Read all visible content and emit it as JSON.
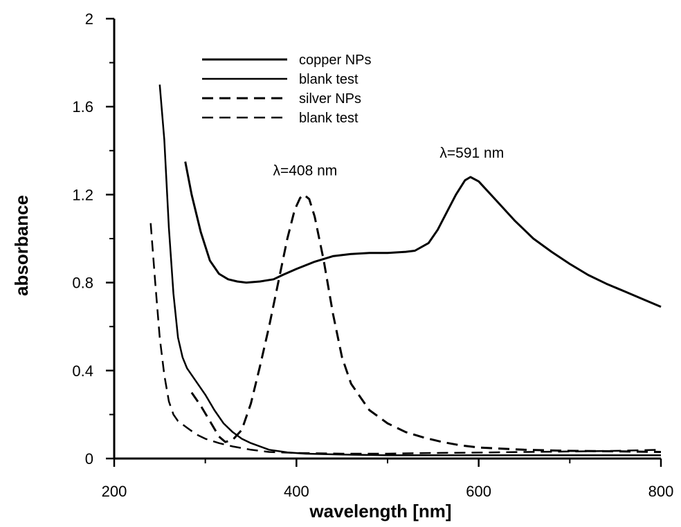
{
  "chart_data": {
    "type": "line",
    "title": "",
    "xlabel": "wavelength [nm]",
    "ylabel": "absorbance",
    "xlim": [
      200,
      800
    ],
    "ylim": [
      0,
      2
    ],
    "xticks": [
      200,
      400,
      600,
      800
    ],
    "yticks": [
      0,
      0.4,
      0.8,
      1.2,
      1.6,
      2
    ],
    "ytick_labels": [
      "0",
      "0.4",
      "0.8",
      "1.2",
      "1.6",
      "2"
    ],
    "grid": false,
    "legend_position": "top-left",
    "legend": [
      {
        "label": "copper NPs",
        "style": "solid-thick"
      },
      {
        "label": "blank test",
        "style": "solid"
      },
      {
        "label": "silver NPs",
        "style": "dashed-thick"
      },
      {
        "label": "blank test",
        "style": "dashed"
      }
    ],
    "annotations": [
      {
        "text": "λ=408 nm",
        "x": 408,
        "y": 1.2
      },
      {
        "text": "λ=591 nm",
        "x": 591,
        "y": 1.28
      }
    ],
    "series": [
      {
        "name": "copper NPs",
        "dash": "solid",
        "width": 3,
        "points": [
          [
            278,
            1.35
          ],
          [
            285,
            1.2
          ],
          [
            295,
            1.03
          ],
          [
            305,
            0.9
          ],
          [
            315,
            0.84
          ],
          [
            325,
            0.815
          ],
          [
            335,
            0.805
          ],
          [
            345,
            0.8
          ],
          [
            360,
            0.805
          ],
          [
            375,
            0.815
          ],
          [
            385,
            0.835
          ],
          [
            400,
            0.862
          ],
          [
            420,
            0.895
          ],
          [
            440,
            0.92
          ],
          [
            460,
            0.93
          ],
          [
            480,
            0.935
          ],
          [
            500,
            0.935
          ],
          [
            520,
            0.94
          ],
          [
            530,
            0.945
          ],
          [
            545,
            0.98
          ],
          [
            555,
            1.04
          ],
          [
            565,
            1.12
          ],
          [
            575,
            1.2
          ],
          [
            585,
            1.265
          ],
          [
            591,
            1.28
          ],
          [
            600,
            1.26
          ],
          [
            620,
            1.17
          ],
          [
            640,
            1.08
          ],
          [
            660,
            1.0
          ],
          [
            680,
            0.94
          ],
          [
            700,
            0.885
          ],
          [
            720,
            0.835
          ],
          [
            740,
            0.795
          ],
          [
            760,
            0.76
          ],
          [
            780,
            0.725
          ],
          [
            800,
            0.69
          ]
        ]
      },
      {
        "name": "blank test",
        "dash": "solid",
        "width": 2.5,
        "points": [
          [
            250,
            1.7
          ],
          [
            255,
            1.45
          ],
          [
            260,
            1.05
          ],
          [
            265,
            0.75
          ],
          [
            270,
            0.55
          ],
          [
            275,
            0.46
          ],
          [
            280,
            0.41
          ],
          [
            290,
            0.35
          ],
          [
            300,
            0.29
          ],
          [
            310,
            0.22
          ],
          [
            320,
            0.16
          ],
          [
            330,
            0.12
          ],
          [
            340,
            0.09
          ],
          [
            350,
            0.07
          ],
          [
            370,
            0.04
          ],
          [
            390,
            0.028
          ],
          [
            410,
            0.022
          ],
          [
            450,
            0.018
          ],
          [
            500,
            0.015
          ],
          [
            600,
            0.015
          ],
          [
            700,
            0.015
          ],
          [
            800,
            0.015
          ]
        ]
      },
      {
        "name": "silver NPs",
        "dash": "dashed",
        "width": 3,
        "points": [
          [
            285,
            0.3
          ],
          [
            295,
            0.24
          ],
          [
            305,
            0.17
          ],
          [
            315,
            0.1
          ],
          [
            322,
            0.075
          ],
          [
            330,
            0.085
          ],
          [
            340,
            0.13
          ],
          [
            350,
            0.25
          ],
          [
            360,
            0.42
          ],
          [
            370,
            0.6
          ],
          [
            380,
            0.8
          ],
          [
            390,
            1.0
          ],
          [
            398,
            1.13
          ],
          [
            404,
            1.185
          ],
          [
            408,
            1.2
          ],
          [
            414,
            1.18
          ],
          [
            420,
            1.1
          ],
          [
            430,
            0.9
          ],
          [
            440,
            0.66
          ],
          [
            450,
            0.46
          ],
          [
            460,
            0.34
          ],
          [
            470,
            0.28
          ],
          [
            480,
            0.22
          ],
          [
            500,
            0.16
          ],
          [
            520,
            0.12
          ],
          [
            540,
            0.095
          ],
          [
            560,
            0.075
          ],
          [
            580,
            0.06
          ],
          [
            600,
            0.05
          ],
          [
            650,
            0.04
          ],
          [
            700,
            0.035
          ],
          [
            750,
            0.033
          ],
          [
            800,
            0.03
          ]
        ]
      },
      {
        "name": "blank test",
        "dash": "dashed",
        "width": 2.5,
        "points": [
          [
            240,
            1.07
          ],
          [
            245,
            0.8
          ],
          [
            250,
            0.55
          ],
          [
            255,
            0.38
          ],
          [
            260,
            0.26
          ],
          [
            265,
            0.2
          ],
          [
            270,
            0.17
          ],
          [
            280,
            0.14
          ],
          [
            290,
            0.11
          ],
          [
            300,
            0.09
          ],
          [
            315,
            0.07
          ],
          [
            330,
            0.055
          ],
          [
            350,
            0.04
          ],
          [
            370,
            0.03
          ],
          [
            400,
            0.025
          ],
          [
            450,
            0.022
          ],
          [
            500,
            0.022
          ],
          [
            550,
            0.025
          ],
          [
            600,
            0.027
          ],
          [
            650,
            0.03
          ],
          [
            700,
            0.032
          ],
          [
            750,
            0.035
          ],
          [
            800,
            0.04
          ]
        ]
      }
    ]
  }
}
